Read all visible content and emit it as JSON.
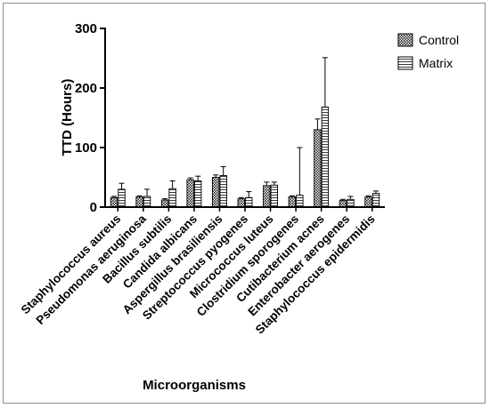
{
  "chart_data": {
    "type": "bar",
    "xlabel": "Microorganisms",
    "ylabel": "TTD (Hours)",
    "ylim": [
      0,
      300
    ],
    "yticks": [
      0,
      100,
      200,
      300
    ],
    "grid": false,
    "legend_position": "top-right",
    "categories": [
      "Staphylococcus aureus",
      "Pseudomonas aeruginosa",
      "Bacillus subtilis",
      "Candida albicans",
      "Aspergillus brasiliensis",
      "Streptococcus pyogenes",
      "Micrococcus luteus",
      "Clostridium sporogenes",
      "Cutibacterium acnes",
      "Enterobacter aerogenes",
      "Staphylococcus epidermidis"
    ],
    "series": [
      {
        "name": "Control",
        "pattern": "crosshatch",
        "values": [
          16,
          17,
          12,
          46,
          50,
          14,
          36,
          17,
          130,
          11,
          17
        ],
        "errors": [
          2,
          2,
          2,
          3,
          4,
          2,
          6,
          2,
          18,
          2,
          2
        ]
      },
      {
        "name": "Matrix",
        "pattern": "horizontal-lines",
        "values": [
          30,
          18,
          31,
          44,
          53,
          16,
          37,
          20,
          168,
          13,
          23
        ],
        "errors": [
          10,
          12,
          13,
          8,
          15,
          10,
          5,
          80,
          83,
          5,
          4
        ]
      }
    ]
  }
}
